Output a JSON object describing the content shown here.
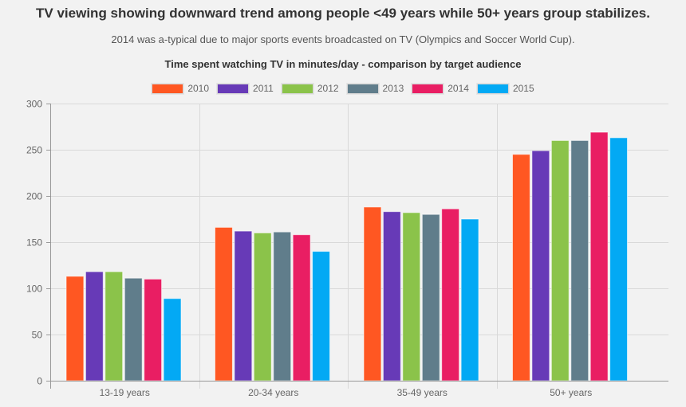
{
  "header": {
    "title": "TV viewing showing downward trend among people <49 years while 50+ years group stabilizes.",
    "subtitle": "2014 was a-typical due to major sports events broadcasted on TV (Olympics and Soccer World Cup).",
    "chart_title": "Time spent watching TV in minutes/day - comparison by target audience"
  },
  "chart_data": {
    "type": "bar",
    "title": "Time spent watching TV in minutes/day - comparison by target audience",
    "xlabel": "",
    "ylabel": "",
    "categories": [
      "13-19 years",
      "20-34 years",
      "35-49 years",
      "50+ years"
    ],
    "series": [
      {
        "name": "2010",
        "color": "#FF5722",
        "values": [
          113,
          166,
          188,
          245
        ]
      },
      {
        "name": "2011",
        "color": "#673AB7",
        "values": [
          118,
          162,
          183,
          249
        ]
      },
      {
        "name": "2012",
        "color": "#8BC34A",
        "values": [
          118,
          160,
          182,
          260
        ]
      },
      {
        "name": "2013",
        "color": "#607D8B",
        "values": [
          111,
          161,
          180,
          260
        ]
      },
      {
        "name": "2014",
        "color": "#E91E63",
        "values": [
          110,
          158,
          186,
          269
        ]
      },
      {
        "name": "2015",
        "color": "#03A9F4",
        "values": [
          89,
          140,
          175,
          263
        ]
      }
    ],
    "ylim": [
      0,
      300
    ],
    "yticks": [
      0,
      50,
      100,
      150,
      200,
      250,
      300
    ],
    "grid": true,
    "legend_position": "top-center"
  }
}
